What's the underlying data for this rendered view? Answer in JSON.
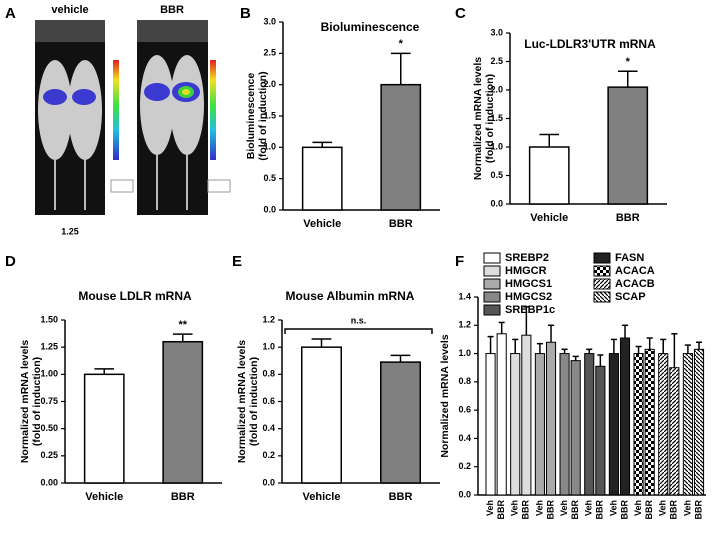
{
  "image_panel": {
    "letter": "A",
    "labels": [
      "vehicle",
      "BBR"
    ],
    "scale_value": "1.25"
  },
  "chart_data": [
    {
      "type": "bar",
      "panel": "B",
      "title": "Bioluminescence",
      "ylabel": [
        "Bioluminescence",
        "(fold of induction)"
      ],
      "categories": [
        "Vehicle",
        "BBR"
      ],
      "values": [
        1,
        2
      ],
      "errors": [
        0.08,
        0.5
      ],
      "colors": [
        "#ffffff",
        "#808080"
      ],
      "ylim": [
        0,
        3
      ],
      "yticks": [
        {
          "value": 0,
          "label": "0.0"
        },
        0.5,
        {
          "value": 1,
          "label": "1.0"
        },
        1.5,
        {
          "value": 2,
          "label": "2.0"
        },
        2.5,
        {
          "value": 3,
          "label": "3.0"
        }
      ],
      "annotation": "*"
    },
    {
      "type": "bar",
      "panel": "C",
      "title": "Luc-LDLR3'UTR mRNA",
      "ylabel": [
        "Normalized mRNA levels",
        "(fold of induction)"
      ],
      "categories": [
        "Vehicle",
        "BBR"
      ],
      "values": [
        1,
        2.05
      ],
      "errors": [
        0.22,
        0.28
      ],
      "colors": [
        "#ffffff",
        "#808080"
      ],
      "ylim": [
        0,
        3
      ],
      "yticks": [
        {
          "value": 0,
          "label": "0.0"
        },
        0.5,
        {
          "value": 1,
          "label": "1.0"
        },
        1.5,
        {
          "value": 2,
          "label": "2.0"
        },
        2.5,
        {
          "value": 3,
          "label": "3.0"
        }
      ],
      "annotation": "*"
    },
    {
      "type": "bar",
      "panel": "D",
      "title": "Mouse LDLR mRNA",
      "ylabel": [
        "Normalized mRNA levels",
        "(fold of induction)"
      ],
      "categories": [
        "Vehicle",
        "BBR"
      ],
      "values": [
        1,
        1.3
      ],
      "errors": [
        0.05,
        0.07
      ],
      "colors": [
        "#ffffff",
        "#808080"
      ],
      "ylim": [
        0,
        1.5
      ],
      "yticks": [
        {
          "value": 0,
          "label": "0.00"
        },
        0.25,
        {
          "value": 0.5,
          "label": "0.50"
        },
        0.75,
        {
          "value": 1,
          "label": "1.00"
        },
        1.25,
        {
          "value": 1.5,
          "label": "1.50"
        }
      ],
      "annotation": "**"
    },
    {
      "type": "bar",
      "panel": "E",
      "title": "Mouse Albumin mRNA",
      "ylabel": [
        "Normalized mRNA levels",
        "(fold of induction)"
      ],
      "categories": [
        "Vehicle",
        "BBR"
      ],
      "values": [
        1,
        0.89
      ],
      "errors": [
        0.06,
        0.05
      ],
      "colors": [
        "#ffffff",
        "#808080"
      ],
      "ylim": [
        0,
        1.2
      ],
      "yticks": [
        {
          "value": 0,
          "label": "0.0"
        },
        0.2,
        0.4,
        0.6,
        0.8,
        {
          "value": 1,
          "label": "1.0"
        },
        1.2
      ],
      "annotation": "n.s.",
      "bracket": true
    },
    {
      "type": "grouped_bar",
      "panel": "F",
      "ylabel": [
        "Normalized mRNA levels"
      ],
      "x_labels": [
        "Veh",
        "BBR"
      ],
      "ylim": [
        0,
        1.4
      ],
      "yticks": [
        {
          "value": 0,
          "label": "0.0"
        },
        0.2,
        0.4,
        0.6,
        0.8,
        {
          "value": 1,
          "label": "1.0"
        },
        1.2,
        1.4
      ],
      "series": [
        {
          "name": "SREBP2",
          "color": "#ffffff",
          "values": [
            1,
            1.14
          ],
          "errors": [
            0.12,
            0.08
          ]
        },
        {
          "name": "HMGCR",
          "color": "#dddddd",
          "values": [
            1,
            1.13
          ],
          "errors": [
            0.1,
            0.2
          ]
        },
        {
          "name": "HMGCS1",
          "color": "#aaaaaa",
          "values": [
            1,
            1.08
          ],
          "errors": [
            0.07,
            0.12
          ]
        },
        {
          "name": "HMGCS2",
          "color": "#888888",
          "values": [
            1,
            0.95
          ],
          "errors": [
            0.03,
            0.03
          ]
        },
        {
          "name": "SREBP1c",
          "color": "#555555",
          "values": [
            1,
            0.91
          ],
          "errors": [
            0.03,
            0.08
          ]
        },
        {
          "name": "FASN",
          "color": "#222222",
          "values": [
            1,
            1.11
          ],
          "errors": [
            0.1,
            0.09
          ]
        },
        {
          "name": "ACACA",
          "color": "#000000",
          "pattern": "check",
          "values": [
            1,
            1.03
          ],
          "errors": [
            0.05,
            0.08
          ]
        },
        {
          "name": "ACACB",
          "color": "#000000",
          "pattern": "hatch",
          "values": [
            1,
            0.9
          ],
          "errors": [
            0.1,
            0.24
          ]
        },
        {
          "name": "SCAP",
          "color": "#000000",
          "pattern": "backhatch",
          "values": [
            1,
            1.03
          ],
          "errors": [
            0.06,
            0.05
          ]
        }
      ]
    }
  ]
}
